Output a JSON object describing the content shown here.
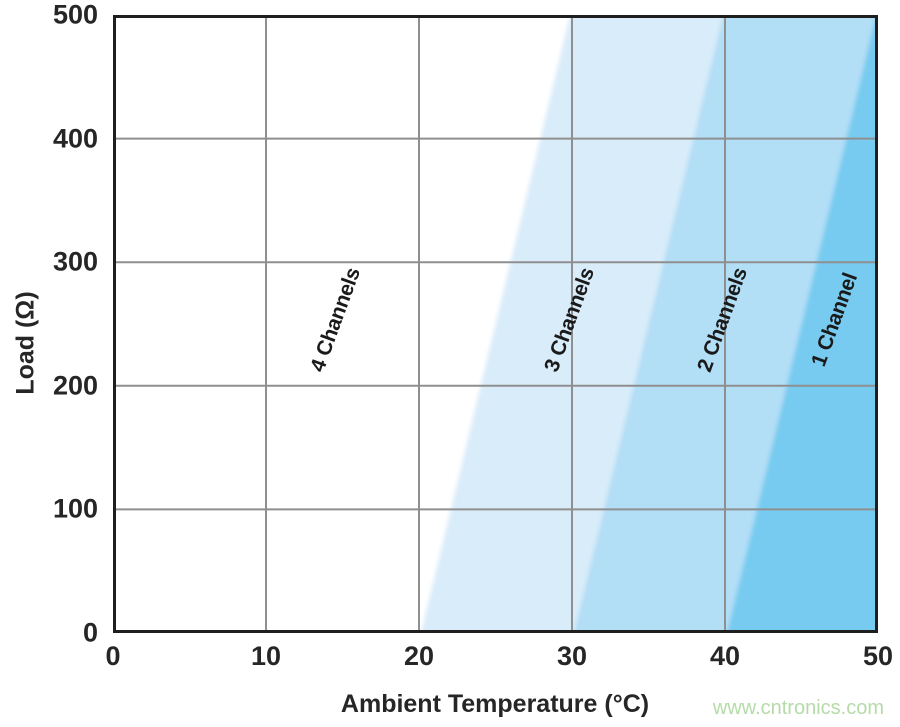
{
  "figure": {
    "watermark": {
      "text": "www.cntronics.com",
      "color": "#b5dba8"
    }
  },
  "chart_data": {
    "type": "area",
    "title": "",
    "xlabel": "Ambient Temperature (°C)",
    "ylabel": "Load (Ω)",
    "xlim": [
      0,
      50
    ],
    "ylim": [
      0,
      500
    ],
    "xticks": [
      0,
      10,
      20,
      30,
      40,
      50
    ],
    "yticks": [
      0,
      100,
      200,
      300,
      400,
      500
    ],
    "grid": true,
    "legend_position": "none",
    "colors": {
      "grid": "#8f8f8f",
      "border": "#1e1e1e",
      "text": "#262626",
      "band_label_text": "#1a1a1a"
    },
    "bands": [
      {
        "label": "4 Channels",
        "fill": "#ffffff",
        "boundary_right": {
          "x_at_y0": 20,
          "x_at_ymax": 30
        },
        "label_anchor": {
          "x": 14.6,
          "y": 253
        }
      },
      {
        "label": "3 Channels",
        "fill": "#d9ecf9",
        "boundary_right": {
          "x_at_y0": 30,
          "x_at_ymax": 40
        },
        "label_anchor": {
          "x": 29.9,
          "y": 253
        }
      },
      {
        "label": "2 Channels",
        "fill": "#b2def6",
        "boundary_right": {
          "x_at_y0": 40,
          "x_at_ymax": 50
        },
        "label_anchor": {
          "x": 39.9,
          "y": 253
        }
      },
      {
        "label": "1 Channel",
        "fill": "#77cbf0",
        "boundary_right": null,
        "label_anchor": {
          "x": 47.2,
          "y": 253
        }
      }
    ]
  }
}
